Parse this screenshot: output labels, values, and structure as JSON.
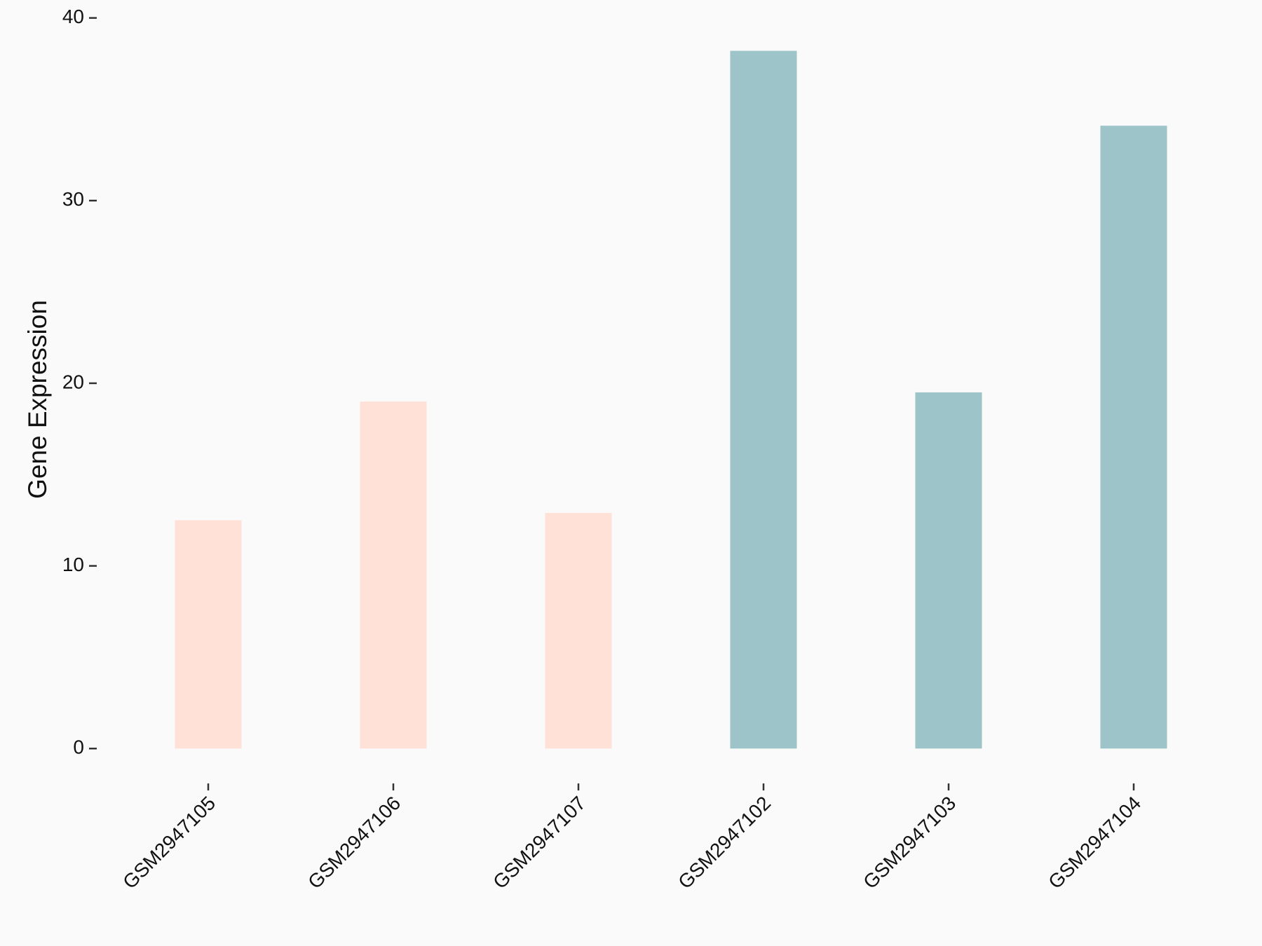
{
  "chart_data": {
    "type": "bar",
    "y_label": "Gene Expression",
    "categories": [
      "GSM2947105",
      "GSM2947106",
      "GSM2947107",
      "GSM2947102",
      "GSM2947103",
      "GSM2947104"
    ],
    "values": [
      12.5,
      19.0,
      12.9,
      38.2,
      19.5,
      34.1
    ],
    "colors": [
      "#ffe1d8",
      "#ffe1d8",
      "#ffe1d8",
      "#9dc4c8",
      "#9dc4c8",
      "#9dc4c8"
    ],
    "ylim": [
      -1.91,
      40.1
    ],
    "yticks": [
      0,
      10,
      20,
      30,
      40
    ],
    "grid": false
  }
}
